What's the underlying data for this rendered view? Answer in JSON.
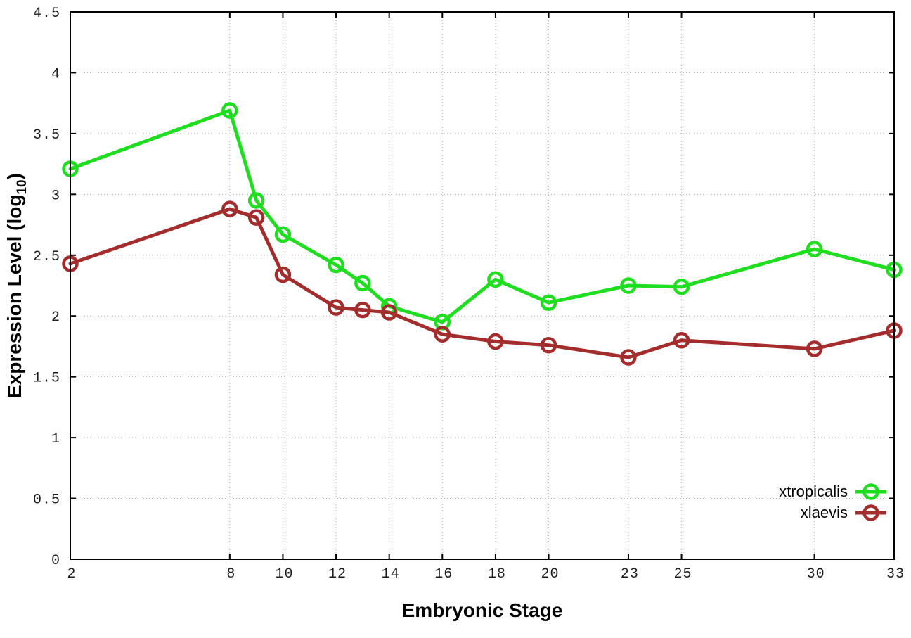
{
  "figure": {
    "xlabel": "Embryonic Stage",
    "ylabel_main": "Expression Level (log",
    "ylabel_sub": "10",
    "ylabel_end": ")",
    "background": "#ffffff",
    "axis_color": "#000000",
    "grid_color": "#b4b4b4"
  },
  "chart_data": {
    "type": "line",
    "title": "",
    "xlabel": "Embryonic Stage",
    "ylabel": "Expression Level (log10)",
    "x": [
      2,
      8,
      9,
      10,
      12,
      13,
      14,
      16,
      18,
      20,
      23,
      25,
      30,
      33
    ],
    "series": [
      {
        "name": "xtropicalis",
        "color": "#1fdd1f",
        "values": [
          3.21,
          3.69,
          2.95,
          2.67,
          2.42,
          2.27,
          2.08,
          1.95,
          2.3,
          2.11,
          2.25,
          2.24,
          2.55,
          2.38
        ]
      },
      {
        "name": "xlaevis",
        "color": "#a32c2c",
        "values": [
          2.43,
          2.88,
          2.81,
          2.34,
          2.07,
          2.05,
          2.03,
          1.85,
          1.79,
          1.76,
          1.66,
          1.8,
          1.73,
          1.88
        ]
      }
    ],
    "xlim": [
      2,
      33
    ],
    "ylim": [
      0,
      4.5
    ],
    "xticks": [
      2,
      8,
      10,
      12,
      14,
      16,
      18,
      20,
      23,
      25,
      30,
      33
    ],
    "xtick_labels": [
      "2",
      "8",
      "10",
      "12",
      "14",
      "16",
      "18",
      "20",
      "23",
      "25",
      "30",
      "33"
    ],
    "yticks": [
      0,
      0.5,
      1,
      1.5,
      2,
      2.5,
      3,
      3.5,
      4,
      4.5
    ],
    "ytick_labels": [
      "0",
      "0.5",
      "1",
      "1.5",
      "2",
      "2.5",
      "3",
      "3.5",
      "4",
      "4.5"
    ],
    "grid": true,
    "grid_style": "dotted",
    "marker": "open-circle",
    "legend_position": "bottom-right-inside"
  }
}
